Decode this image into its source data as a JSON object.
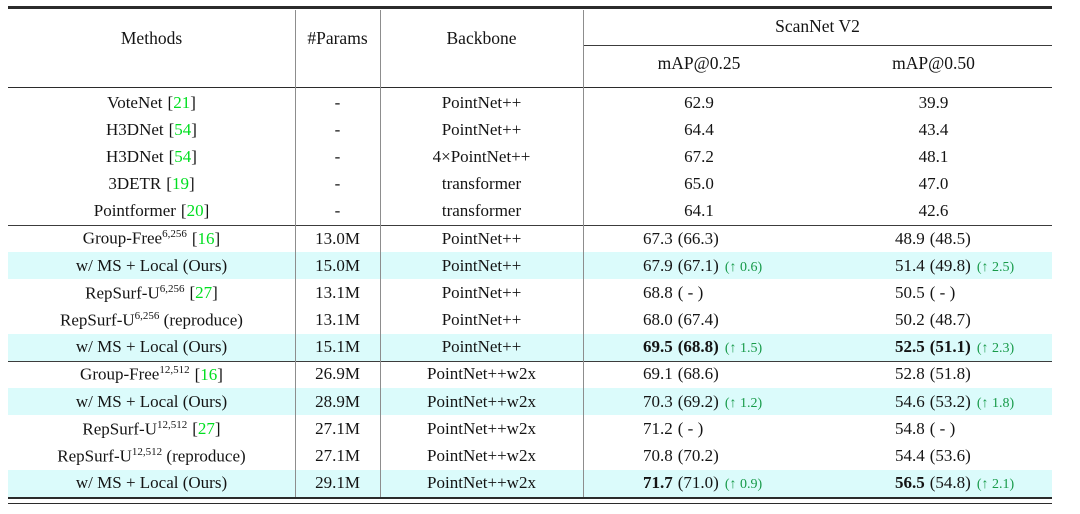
{
  "colors": {
    "highlight_row": "#dbfbfb",
    "citation_green": "#00df20",
    "delta_green": "#179a49",
    "rule_dark": "#2b2b2b",
    "vline_gray": "#8d8d8d"
  },
  "citation_brackets": [
    "[",
    "]"
  ],
  "header": {
    "methods": "Methods",
    "params": "#Params",
    "backbone": "Backbone",
    "dataset": "ScanNet V2",
    "map25": "mAP@0.25",
    "map50": "mAP@0.50"
  },
  "rows": [
    {
      "method": {
        "name": "VoteNet",
        "sup": "",
        "cite": "21",
        "suffix": ""
      },
      "params": "-",
      "backbone": "PointNet++",
      "map25": {
        "main": "62.9",
        "paren": "",
        "delta": ""
      },
      "map50": {
        "main": "39.9",
        "paren": "",
        "delta": ""
      }
    },
    {
      "method": {
        "name": "H3DNet",
        "sup": "",
        "cite": "54",
        "suffix": ""
      },
      "params": "-",
      "backbone": "PointNet++",
      "map25": {
        "main": "64.4",
        "paren": "",
        "delta": ""
      },
      "map50": {
        "main": "43.4",
        "paren": "",
        "delta": ""
      }
    },
    {
      "method": {
        "name": "H3DNet",
        "sup": "",
        "cite": "54",
        "suffix": ""
      },
      "params": "-",
      "backbone": "4×PointNet++",
      "map25": {
        "main": "67.2",
        "paren": "",
        "delta": ""
      },
      "map50": {
        "main": "48.1",
        "paren": "",
        "delta": ""
      }
    },
    {
      "method": {
        "name": "3DETR",
        "sup": "",
        "cite": "19",
        "suffix": ""
      },
      "params": "-",
      "backbone": "transformer",
      "map25": {
        "main": "65.0",
        "paren": "",
        "delta": ""
      },
      "map50": {
        "main": "47.0",
        "paren": "",
        "delta": ""
      }
    },
    {
      "method": {
        "name": "Pointformer",
        "sup": "",
        "cite": "20",
        "suffix": ""
      },
      "params": "-",
      "backbone": "transformer",
      "map25": {
        "main": "64.1",
        "paren": "",
        "delta": ""
      },
      "map50": {
        "main": "42.6",
        "paren": "",
        "delta": ""
      }
    },
    {
      "method": {
        "name": "Group-Free",
        "sup": "6,256",
        "cite": "16",
        "suffix": ""
      },
      "params": "13.0M",
      "backbone": "PointNet++",
      "map25": {
        "main": "67.3",
        "paren": "(66.3)",
        "delta": ""
      },
      "map50": {
        "main": "48.9",
        "paren": "(48.5)",
        "delta": ""
      }
    },
    {
      "method": {
        "name": "w/ MS + Local (Ours)",
        "sup": "",
        "cite": "",
        "suffix": ""
      },
      "params": "15.0M",
      "backbone": "PointNet++",
      "map25": {
        "main": "67.9",
        "paren": "(67.1)",
        "delta": "(↑ 0.6)"
      },
      "map50": {
        "main": "51.4",
        "paren": "(49.8)",
        "delta": "(↑ 2.5)"
      }
    },
    {
      "method": {
        "name": "RepSurf-U",
        "sup": "6,256",
        "cite": "27",
        "suffix": ""
      },
      "params": "13.1M",
      "backbone": "PointNet++",
      "map25": {
        "main": "68.8",
        "paren": "( - )",
        "delta": ""
      },
      "map50": {
        "main": "50.5",
        "paren": "( - )",
        "delta": ""
      }
    },
    {
      "method": {
        "name": "RepSurf-U",
        "sup": "6,256",
        "cite": "",
        "suffix": " (reproduce)"
      },
      "params": "13.1M",
      "backbone": "PointNet++",
      "map25": {
        "main": "68.0",
        "paren": "(67.4)",
        "delta": ""
      },
      "map50": {
        "main": "50.2",
        "paren": "(48.7)",
        "delta": ""
      }
    },
    {
      "method": {
        "name": "w/ MS + Local (Ours)",
        "sup": "",
        "cite": "",
        "suffix": ""
      },
      "params": "15.1M",
      "backbone": "PointNet++",
      "map25": {
        "main": "69.5",
        "paren": "(68.8)",
        "delta": "(↑ 1.5)"
      },
      "map50": {
        "main": "52.5",
        "paren": "(51.1)",
        "delta": "(↑ 2.3)"
      }
    },
    {
      "method": {
        "name": "Group-Free",
        "sup": "12,512",
        "cite": "16",
        "suffix": ""
      },
      "params": "26.9M",
      "backbone": "PointNet++w2x",
      "map25": {
        "main": "69.1",
        "paren": "(68.6)",
        "delta": ""
      },
      "map50": {
        "main": "52.8",
        "paren": "(51.8)",
        "delta": ""
      }
    },
    {
      "method": {
        "name": "w/ MS + Local (Ours)",
        "sup": "",
        "cite": "",
        "suffix": ""
      },
      "params": "28.9M",
      "backbone": "PointNet++w2x",
      "map25": {
        "main": "70.3",
        "paren": "(69.2)",
        "delta": "(↑ 1.2)"
      },
      "map50": {
        "main": "54.6",
        "paren": "(53.2)",
        "delta": "(↑ 1.8)"
      }
    },
    {
      "method": {
        "name": "RepSurf-U",
        "sup": "12,512",
        "cite": "27",
        "suffix": ""
      },
      "params": "27.1M",
      "backbone": "PointNet++w2x",
      "map25": {
        "main": "71.2",
        "paren": "( - )",
        "delta": ""
      },
      "map50": {
        "main": "54.8",
        "paren": "( - )",
        "delta": ""
      }
    },
    {
      "method": {
        "name": "RepSurf-U",
        "sup": "12,512",
        "cite": "",
        "suffix": " (reproduce)"
      },
      "params": "27.1M",
      "backbone": "PointNet++w2x",
      "map25": {
        "main": "70.8",
        "paren": "(70.2)",
        "delta": ""
      },
      "map50": {
        "main": "54.4",
        "paren": "(53.6)",
        "delta": ""
      }
    },
    {
      "method": {
        "name": "w/ MS + Local (Ours)",
        "sup": "",
        "cite": "",
        "suffix": ""
      },
      "params": "29.1M",
      "backbone": "PointNet++w2x",
      "map25": {
        "main": "71.7",
        "paren": "(71.0)",
        "delta": "(↑ 0.9)"
      },
      "map50": {
        "main": "56.5",
        "paren": "(54.8)",
        "delta": "(↑ 2.1)"
      }
    }
  ]
}
